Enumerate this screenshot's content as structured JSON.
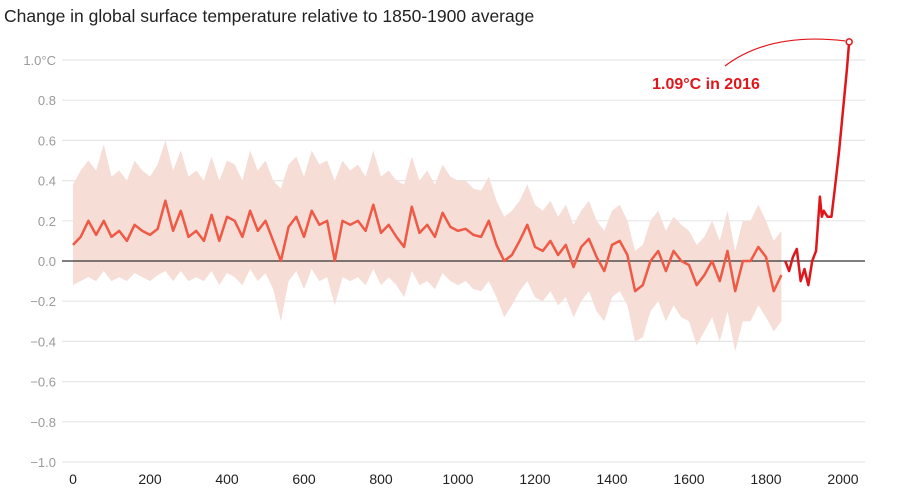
{
  "chart_data": {
    "type": "line",
    "title": "Change in global surface temperature relative to 1850-1900 average",
    "xlabel": "",
    "ylabel": "",
    "xlim": [
      0,
      2016
    ],
    "ylim": [
      -1.0,
      1.0
    ],
    "grid": true,
    "x_ticks": [
      "0",
      "200",
      "400",
      "600",
      "800",
      "1000",
      "1200",
      "1400",
      "1600",
      "1800",
      "2000"
    ],
    "y_ticks": [
      "1.0°C",
      "0.8",
      "0.6",
      "0.4",
      "0.2",
      "0.0",
      "−0.2",
      "−0.4",
      "−0.6",
      "−0.8",
      "−1.0"
    ],
    "colors": {
      "reconstruction": "#ee5a45",
      "band": "#f6ddd6",
      "instrumental": "#e0161b",
      "zero_line": "#333333",
      "grid": "#e6e6e6"
    },
    "reconstruction": {
      "x": [
        0,
        20,
        40,
        60,
        80,
        100,
        120,
        140,
        160,
        180,
        200,
        220,
        240,
        260,
        280,
        300,
        320,
        340,
        360,
        380,
        400,
        420,
        440,
        460,
        480,
        500,
        520,
        540,
        560,
        580,
        600,
        620,
        640,
        660,
        680,
        700,
        720,
        740,
        760,
        780,
        800,
        820,
        840,
        860,
        880,
        900,
        920,
        940,
        960,
        980,
        1000,
        1020,
        1040,
        1060,
        1080,
        1100,
        1120,
        1140,
        1160,
        1180,
        1200,
        1220,
        1240,
        1260,
        1280,
        1300,
        1320,
        1340,
        1360,
        1380,
        1400,
        1420,
        1440,
        1460,
        1480,
        1500,
        1520,
        1540,
        1560,
        1580,
        1600,
        1620,
        1640,
        1660,
        1680,
        1700,
        1720,
        1740,
        1760,
        1780,
        1800,
        1820,
        1840
      ],
      "y": [
        0.08,
        0.12,
        0.2,
        0.13,
        0.2,
        0.12,
        0.15,
        0.1,
        0.18,
        0.15,
        0.13,
        0.16,
        0.3,
        0.15,
        0.25,
        0.12,
        0.15,
        0.1,
        0.23,
        0.1,
        0.22,
        0.2,
        0.12,
        0.25,
        0.15,
        0.2,
        0.1,
        0.0,
        0.17,
        0.22,
        0.12,
        0.25,
        0.18,
        0.2,
        0.0,
        0.2,
        0.18,
        0.2,
        0.15,
        0.28,
        0.14,
        0.18,
        0.12,
        0.07,
        0.27,
        0.14,
        0.18,
        0.12,
        0.24,
        0.17,
        0.15,
        0.16,
        0.13,
        0.12,
        0.2,
        0.08,
        0.0,
        0.03,
        0.1,
        0.18,
        0.07,
        0.05,
        0.1,
        0.03,
        0.08,
        -0.03,
        0.07,
        0.11,
        0.02,
        -0.05,
        0.08,
        0.1,
        0.03,
        -0.15,
        -0.12,
        0.0,
        0.05,
        -0.05,
        0.05,
        0.0,
        -0.02,
        -0.12,
        -0.07,
        0.0,
        -0.1,
        0.05,
        -0.15,
        0.0,
        0.0,
        0.07,
        0.02,
        -0.15,
        -0.07
      ],
      "upper": [
        0.38,
        0.45,
        0.5,
        0.45,
        0.58,
        0.42,
        0.45,
        0.4,
        0.5,
        0.45,
        0.42,
        0.48,
        0.6,
        0.45,
        0.55,
        0.42,
        0.45,
        0.4,
        0.52,
        0.4,
        0.5,
        0.48,
        0.4,
        0.55,
        0.45,
        0.5,
        0.4,
        0.36,
        0.48,
        0.52,
        0.42,
        0.55,
        0.48,
        0.5,
        0.4,
        0.5,
        0.45,
        0.48,
        0.42,
        0.55,
        0.42,
        0.45,
        0.4,
        0.38,
        0.52,
        0.4,
        0.45,
        0.38,
        0.48,
        0.42,
        0.4,
        0.4,
        0.36,
        0.35,
        0.42,
        0.3,
        0.22,
        0.25,
        0.3,
        0.38,
        0.28,
        0.25,
        0.3,
        0.22,
        0.28,
        0.18,
        0.25,
        0.3,
        0.2,
        0.15,
        0.25,
        0.28,
        0.2,
        0.05,
        0.08,
        0.2,
        0.25,
        0.15,
        0.22,
        0.18,
        0.15,
        0.08,
        0.12,
        0.2,
        0.1,
        0.25,
        0.05,
        0.2,
        0.2,
        0.28,
        0.2,
        0.1,
        0.15
      ],
      "lower": [
        -0.12,
        -0.1,
        -0.08,
        -0.1,
        -0.05,
        -0.1,
        -0.08,
        -0.1,
        -0.06,
        -0.08,
        -0.1,
        -0.07,
        -0.05,
        -0.1,
        -0.05,
        -0.1,
        -0.08,
        -0.1,
        -0.05,
        -0.12,
        -0.06,
        -0.08,
        -0.12,
        -0.04,
        -0.1,
        -0.06,
        -0.14,
        -0.3,
        -0.1,
        -0.05,
        -0.14,
        -0.04,
        -0.1,
        -0.08,
        -0.22,
        -0.08,
        -0.1,
        -0.08,
        -0.12,
        -0.04,
        -0.12,
        -0.08,
        -0.12,
        -0.18,
        -0.05,
        -0.12,
        -0.1,
        -0.14,
        -0.06,
        -0.1,
        -0.12,
        -0.1,
        -0.14,
        -0.15,
        -0.1,
        -0.18,
        -0.28,
        -0.22,
        -0.15,
        -0.1,
        -0.18,
        -0.2,
        -0.15,
        -0.22,
        -0.18,
        -0.28,
        -0.2,
        -0.15,
        -0.25,
        -0.3,
        -0.18,
        -0.15,
        -0.22,
        -0.4,
        -0.38,
        -0.25,
        -0.2,
        -0.3,
        -0.22,
        -0.28,
        -0.3,
        -0.42,
        -0.35,
        -0.28,
        -0.4,
        -0.25,
        -0.45,
        -0.3,
        -0.3,
        -0.22,
        -0.28,
        -0.35,
        -0.3
      ]
    },
    "instrumental": {
      "x": [
        1850,
        1860,
        1870,
        1880,
        1890,
        1900,
        1910,
        1920,
        1930,
        1940,
        1945,
        1950,
        1960,
        1970,
        1980,
        1990,
        2000,
        2010,
        2016
      ],
      "y": [
        0.0,
        -0.05,
        0.02,
        0.06,
        -0.1,
        -0.04,
        -0.12,
        0.0,
        0.05,
        0.32,
        0.22,
        0.25,
        0.22,
        0.22,
        0.38,
        0.55,
        0.75,
        0.95,
        1.09
      ]
    },
    "annotation": {
      "text": "1.09°C in 2016",
      "x": 2016,
      "y": 1.09
    }
  }
}
